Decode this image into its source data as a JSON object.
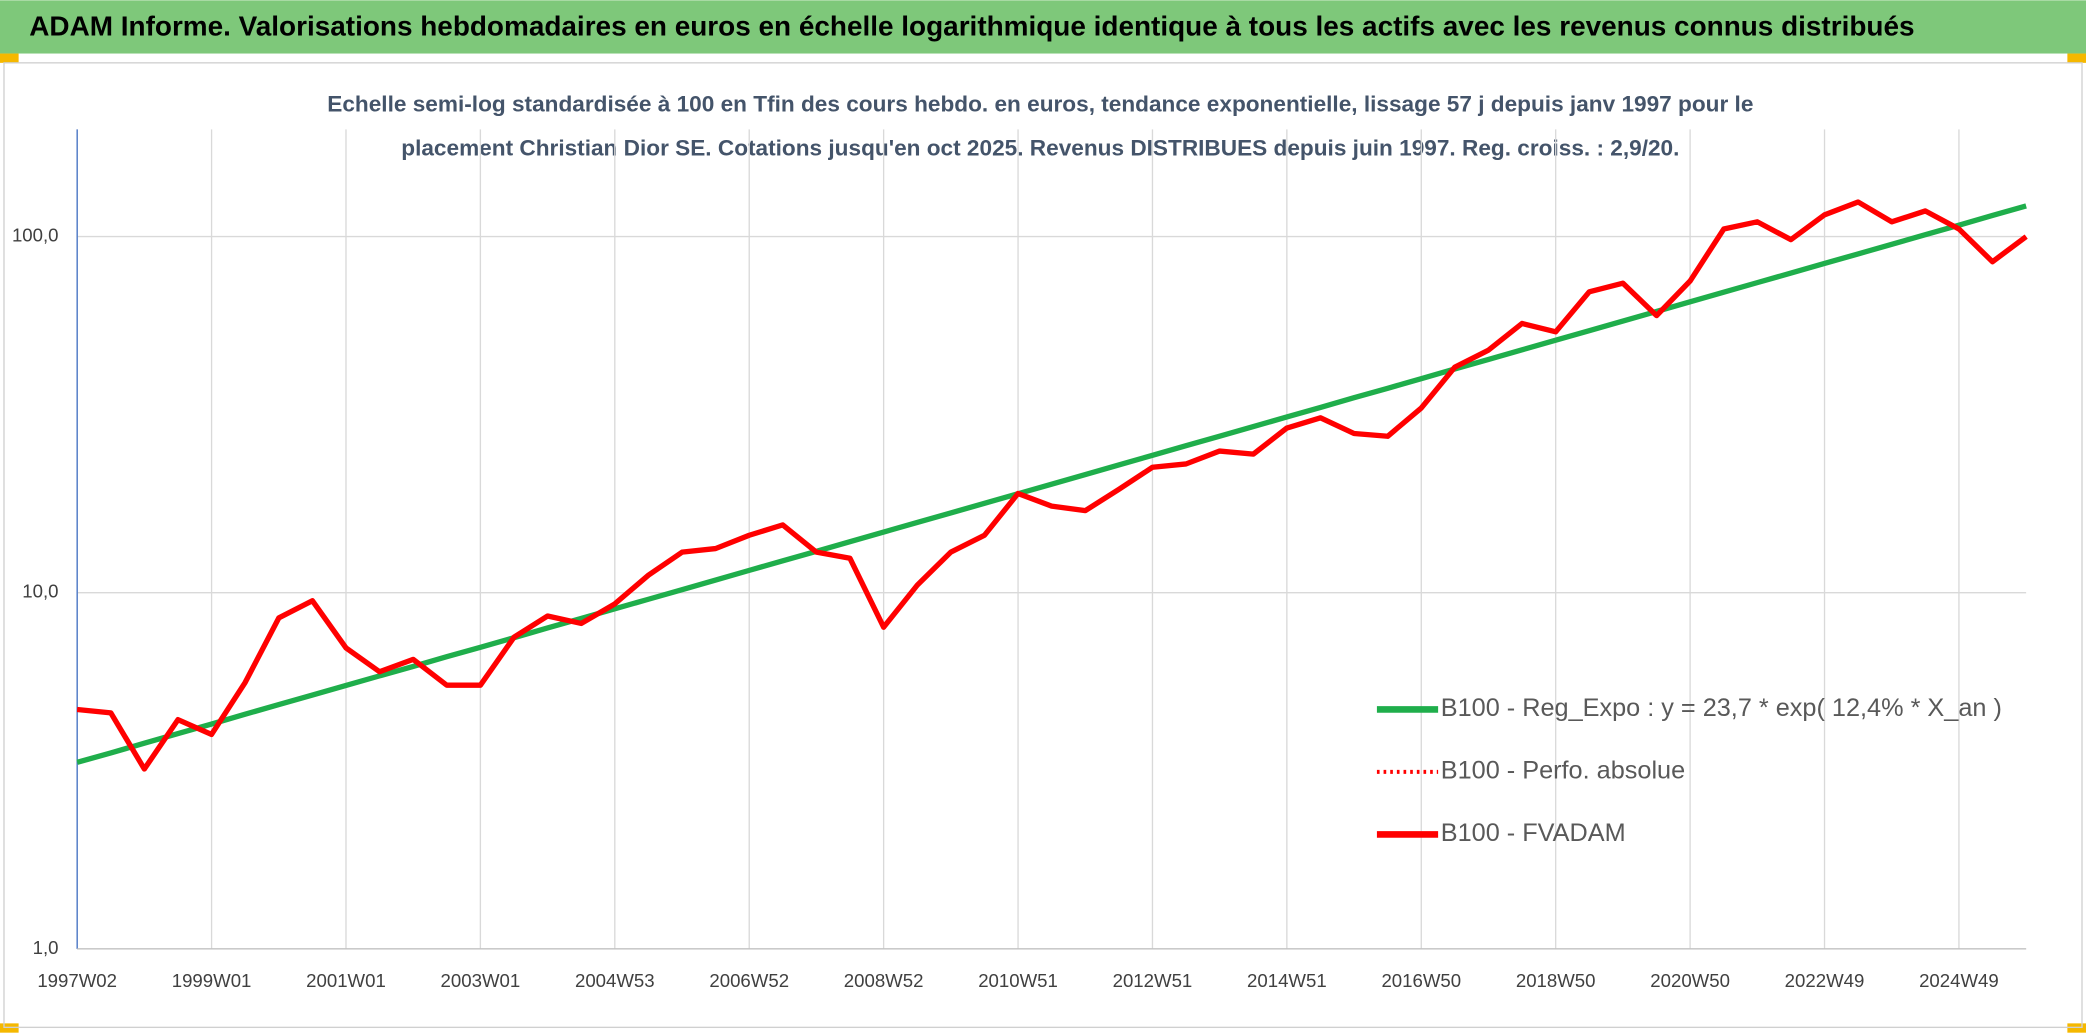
{
  "chart_data": {
    "type": "line",
    "title": "ADAM Informe. Valorisations hebdomadaires en euros en échelle logarithmique identique à tous les actifs avec les revenus connus distribués",
    "subtitle": [
      "Echelle semi-log standardisée à 100 en Tfin des cours hebdo. en euros, tendance exponentielle, lissage 57 j depuis janv 1997 pour le",
      "placement Christian Dior SE. Cotations jusqu'en oct 2025. Revenus DISTRIBUES depuis juin 1997. Reg. croiss. : 2,9/20."
    ],
    "categories": [
      "1997W02",
      null,
      null,
      null,
      "1999W01",
      null,
      null,
      null,
      "2001W01",
      null,
      null,
      null,
      "2003W01",
      null,
      null,
      null,
      "2004W53",
      null,
      null,
      null,
      "2006W52",
      null,
      null,
      null,
      "2008W52",
      null,
      null,
      null,
      "2010W51",
      null,
      null,
      null,
      "2012W51",
      null,
      null,
      null,
      "2014W51",
      null,
      null,
      null,
      "2016W50",
      null,
      null,
      null,
      "2018W50",
      null,
      null,
      null,
      "2020W50",
      null,
      null,
      null,
      "2022W49",
      null,
      null,
      null,
      "2024W49",
      null,
      null
    ],
    "log_scale": true,
    "ylim": [
      1,
      200
    ],
    "yticks": [
      {
        "value": 1,
        "label": "1,0"
      },
      {
        "value": 10,
        "label": "10,0"
      },
      {
        "value": 100,
        "label": "100,0"
      }
    ],
    "grid": true,
    "legend": "lower right",
    "series": [
      {
        "name": "B100 - Reg_Expo : y = 23,7 * exp( 12,4% *  X_an )",
        "color": "#1fae4b",
        "style": "solid",
        "values": [
          3.34,
          3.55,
          3.78,
          4.02,
          4.28,
          4.56,
          4.85,
          5.16,
          5.49,
          5.84,
          6.21,
          6.61,
          7.03,
          7.48,
          7.96,
          8.47,
          9.01,
          9.59,
          10.2,
          10.85,
          11.55,
          12.29,
          13.07,
          13.91,
          14.8,
          15.75,
          16.76,
          17.83,
          18.97,
          20.18,
          21.47,
          22.85,
          24.31,
          25.86,
          27.52,
          29.28,
          31.15,
          33.15,
          35.27,
          37.52,
          39.92,
          42.48,
          45.2,
          48.09,
          51.17,
          54.44,
          57.93,
          61.63,
          65.58,
          69.77,
          74.24,
          78.99,
          84.05,
          89.42,
          95.15,
          101.2,
          107.7,
          114.6,
          121.9
        ]
      },
      {
        "name": "B100 - Perfo. absolue",
        "color": "#ff0000",
        "style": "dotted",
        "values": [
          4.7,
          4.6,
          3.2,
          4.4,
          4.0,
          5.6,
          8.5,
          9.5,
          7.0,
          6.0,
          6.5,
          5.5,
          5.5,
          7.5,
          8.6,
          8.2,
          9.3,
          11.2,
          13.0,
          13.3,
          14.5,
          15.5,
          13.0,
          12.5,
          8.0,
          10.5,
          13.0,
          14.5,
          19.0,
          17.5,
          17.0,
          19.5,
          22.5,
          23.0,
          25.0,
          24.5,
          29.0,
          31.0,
          28.0,
          27.5,
          33.0,
          43.0,
          48.0,
          57.0,
          54.0,
          70.0,
          74.0,
          60.0,
          75.0,
          105,
          110,
          98,
          115,
          125,
          110,
          118,
          105,
          85,
          100
        ]
      },
      {
        "name": "B100 - FVADAM",
        "color": "#ff0000",
        "style": "solid",
        "values": [
          4.7,
          4.6,
          3.2,
          4.4,
          4.0,
          5.6,
          8.5,
          9.5,
          7.0,
          6.0,
          6.5,
          5.5,
          5.5,
          7.5,
          8.6,
          8.2,
          9.3,
          11.2,
          13.0,
          13.3,
          14.5,
          15.5,
          13.0,
          12.5,
          8.0,
          10.5,
          13.0,
          14.5,
          19.0,
          17.5,
          17.0,
          19.5,
          22.5,
          23.0,
          25.0,
          24.5,
          29.0,
          31.0,
          28.0,
          27.5,
          33.0,
          43.0,
          48.0,
          57.0,
          54.0,
          70.0,
          74.0,
          60.0,
          75.0,
          105,
          110,
          98,
          115,
          125,
          110,
          118,
          105,
          85,
          100
        ]
      }
    ]
  }
}
